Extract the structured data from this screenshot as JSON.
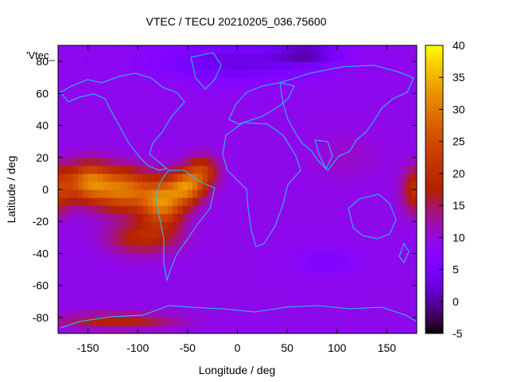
{
  "chart_data": {
    "type": "heatmap",
    "title": "VTEC / TECU 20210205_036.75600",
    "xlabel": "Longitude / deg",
    "ylabel": "Latitude / deg",
    "key_label": "'Vtec_",
    "xlim": [
      -180,
      180
    ],
    "ylim": [
      -90,
      90
    ],
    "x_ticks": [
      -150,
      -100,
      -50,
      0,
      50,
      100,
      150
    ],
    "y_ticks": [
      -80,
      -60,
      -40,
      -20,
      0,
      20,
      40,
      60,
      80
    ],
    "colorbar": {
      "range": [
        -5,
        40
      ],
      "ticks": [
        -5,
        0,
        5,
        10,
        15,
        20,
        25,
        30,
        35,
        40
      ],
      "palette": "gnuplot-rgbformulae-7-5-15"
    },
    "grid": false,
    "overlay": "coastlines",
    "tec_model": {
      "background": 9,
      "features": [
        {
          "lon": -150,
          "lat": 5,
          "amp": 19,
          "slon": 22,
          "slat": 12
        },
        {
          "lon": -115,
          "lat": 0,
          "amp": 20,
          "slon": 28,
          "slat": 13
        },
        {
          "lon": -75,
          "lat": -8,
          "amp": 21,
          "slon": 22,
          "slat": 14
        },
        {
          "lon": -50,
          "lat": 2,
          "amp": 19,
          "slon": 18,
          "slat": 10
        },
        {
          "lon": -35,
          "lat": 12,
          "amp": 12,
          "slon": 16,
          "slat": 9
        },
        {
          "lon": -95,
          "lat": -30,
          "amp": 10,
          "slon": 35,
          "slat": 10
        },
        {
          "lon": 180,
          "lat": 0,
          "amp": 12,
          "slon": 14,
          "slat": 14
        },
        {
          "lon": -180,
          "lat": 0,
          "amp": 12,
          "slon": 14,
          "slat": 14
        },
        {
          "lon": -120,
          "lat": -82,
          "amp": 9,
          "slon": 60,
          "slat": 5
        },
        {
          "lon": 0,
          "lat": 80,
          "amp": -6,
          "slon": 80,
          "slat": 12
        },
        {
          "lon": 70,
          "lat": 85,
          "amp": -7,
          "slon": 30,
          "slat": 6
        },
        {
          "lon": 90,
          "lat": -45,
          "amp": -3,
          "slon": 30,
          "slat": 8
        },
        {
          "lon": 110,
          "lat": 20,
          "amp": 2,
          "slon": 35,
          "slat": 15
        }
      ]
    }
  }
}
